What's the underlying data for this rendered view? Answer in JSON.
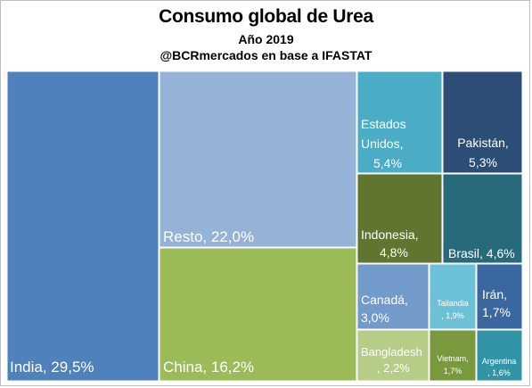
{
  "chart_data": {
    "type": "treemap",
    "title": "Consumo global de Urea",
    "subtitle": "Año 2019",
    "source": "@BCRmercados en base a IFASTAT",
    "unit": "%",
    "items": [
      {
        "name": "India",
        "value": 29.5,
        "label_lines": [
          "India, 29,5%"
        ],
        "color": "#4f81bd"
      },
      {
        "name": "Resto",
        "value": 22.0,
        "label_lines": [
          "Resto, 22,0%"
        ],
        "color": "#95b3d7"
      },
      {
        "name": "China",
        "value": 16.2,
        "label_lines": [
          "China, 16,2%"
        ],
        "color": "#9bbb59"
      },
      {
        "name": "Estados Unidos",
        "value": 5.4,
        "label_lines": [
          "Estados",
          "Unidos,",
          "5,4%"
        ],
        "color": "#4bacc6"
      },
      {
        "name": "Pakistán",
        "value": 5.3,
        "label_lines": [
          "Pakistán,",
          "5,3%"
        ],
        "color": "#2c4d75"
      },
      {
        "name": "Indonesia",
        "value": 4.8,
        "label_lines": [
          "Indonesia,",
          "4,8%"
        ],
        "color": "#5f7530"
      },
      {
        "name": "Brasil",
        "value": 4.6,
        "label_lines": [
          "Brasil, 4,6%"
        ],
        "color": "#276a7c"
      },
      {
        "name": "Canadá",
        "value": 3.0,
        "label_lines": [
          "Canadá,",
          "3,0%"
        ],
        "color": "#729aca"
      },
      {
        "name": "Tailandia",
        "value": 1.9,
        "label_lines": [
          "Tailandia",
          ", 1,9%"
        ],
        "color": "#6cc1d6"
      },
      {
        "name": "Irán",
        "value": 1.7,
        "label_lines": [
          "Irán,",
          "1,7%"
        ],
        "color": "#3a67a0"
      },
      {
        "name": "Bangladesh",
        "value": 2.2,
        "label_lines": [
          "Bangladesh",
          ", 2,2%"
        ],
        "color": "#b5cd84"
      },
      {
        "name": "Vietnam",
        "value": 1.7,
        "label_lines": [
          "Vietnam,",
          "1,7%"
        ],
        "color": "#799a3c"
      },
      {
        "name": "Argentina",
        "value": 1.6,
        "label_lines": [
          "Argentina",
          ", 1,6%"
        ],
        "color": "#3394a8"
      }
    ]
  }
}
